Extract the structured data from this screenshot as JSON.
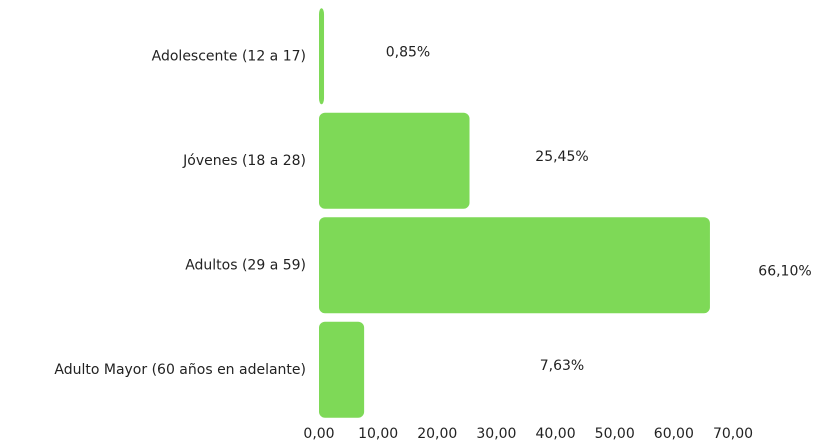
{
  "chart_data": {
    "type": "bar",
    "orientation": "horizontal",
    "categories": [
      "Adolescente (12 a 17)",
      "Jóvenes (18 a 28)",
      "Adultos (29 a 59)",
      "Adulto Mayor (60 años en adelante)"
    ],
    "values": [
      0.85,
      25.45,
      66.1,
      7.63
    ],
    "value_labels": [
      "0,85%",
      "25,45%",
      "66,10%",
      "7,63%"
    ],
    "color": "#7ed957",
    "xlim": [
      0,
      70
    ],
    "xticks": [
      {
        "value": 0,
        "label": "0,00"
      },
      {
        "value": 10,
        "label": "10,00"
      },
      {
        "value": 20,
        "label": "20,00"
      },
      {
        "value": 30,
        "label": "30,00"
      },
      {
        "value": 40,
        "label": "40,00"
      },
      {
        "value": 50,
        "label": "50,00"
      },
      {
        "value": 60,
        "label": "60,00"
      },
      {
        "value": 70,
        "label": "70,00"
      }
    ]
  }
}
